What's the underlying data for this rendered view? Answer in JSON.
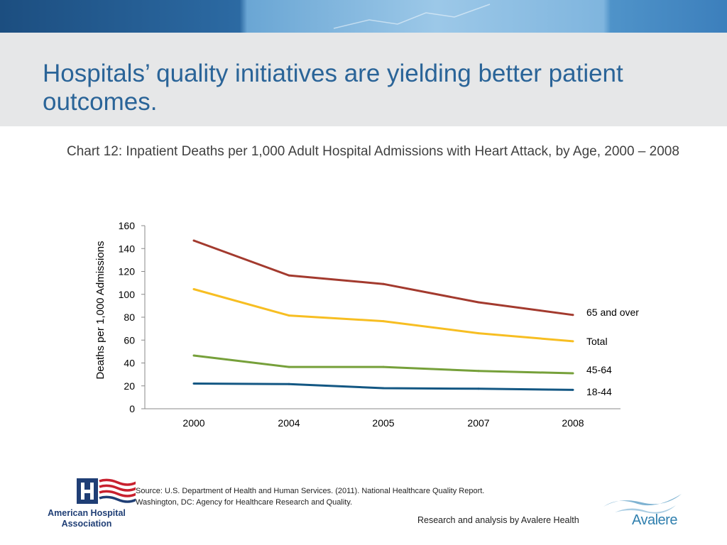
{
  "slide": {
    "title": "Hospitals’ quality initiatives are yielding better patient outcomes.",
    "subtitle": "Chart 12: Inpatient Deaths per 1,000 Adult Hospital Admissions with Heart Attack, by Age, 2000 – 2008"
  },
  "chart_data": {
    "type": "line",
    "title": "Chart 12: Inpatient Deaths per 1,000 Adult Hospital Admissions with Heart Attack, by Age, 2000 – 2008",
    "xlabel": "",
    "ylabel": "Deaths per 1,000 Admissions",
    "categories": [
      "2000",
      "2004",
      "2005",
      "2007",
      "2008"
    ],
    "ylim": [
      0,
      160
    ],
    "yticks": [
      0,
      20,
      40,
      60,
      80,
      100,
      120,
      140,
      160
    ],
    "grid": false,
    "legend": "series labels at right end of lines",
    "series": [
      {
        "name": "65 and over",
        "color": "#a33a2e",
        "values": [
          147,
          116.5,
          109,
          93,
          82
        ]
      },
      {
        "name": "Total",
        "color": "#f7be22",
        "values": [
          104.5,
          81.5,
          76.5,
          66,
          59
        ]
      },
      {
        "name": "45-64",
        "color": "#76a03a",
        "values": [
          46.5,
          36.5,
          36.5,
          33,
          31
        ]
      },
      {
        "name": "18-44",
        "color": "#135783",
        "values": [
          22,
          21.5,
          18,
          17.5,
          16.5
        ]
      }
    ]
  },
  "footer": {
    "source_line1": "Source: U.S. Department of Health and Human Services. (2011). National Healthcare Quality Report.",
    "source_line2": "Washington, DC: Agency for Healthcare Research and Quality.",
    "credit": "Research and analysis by Avalere Health",
    "aha_logo": "American Hospital Association",
    "avalere_logo": "Avalere"
  }
}
